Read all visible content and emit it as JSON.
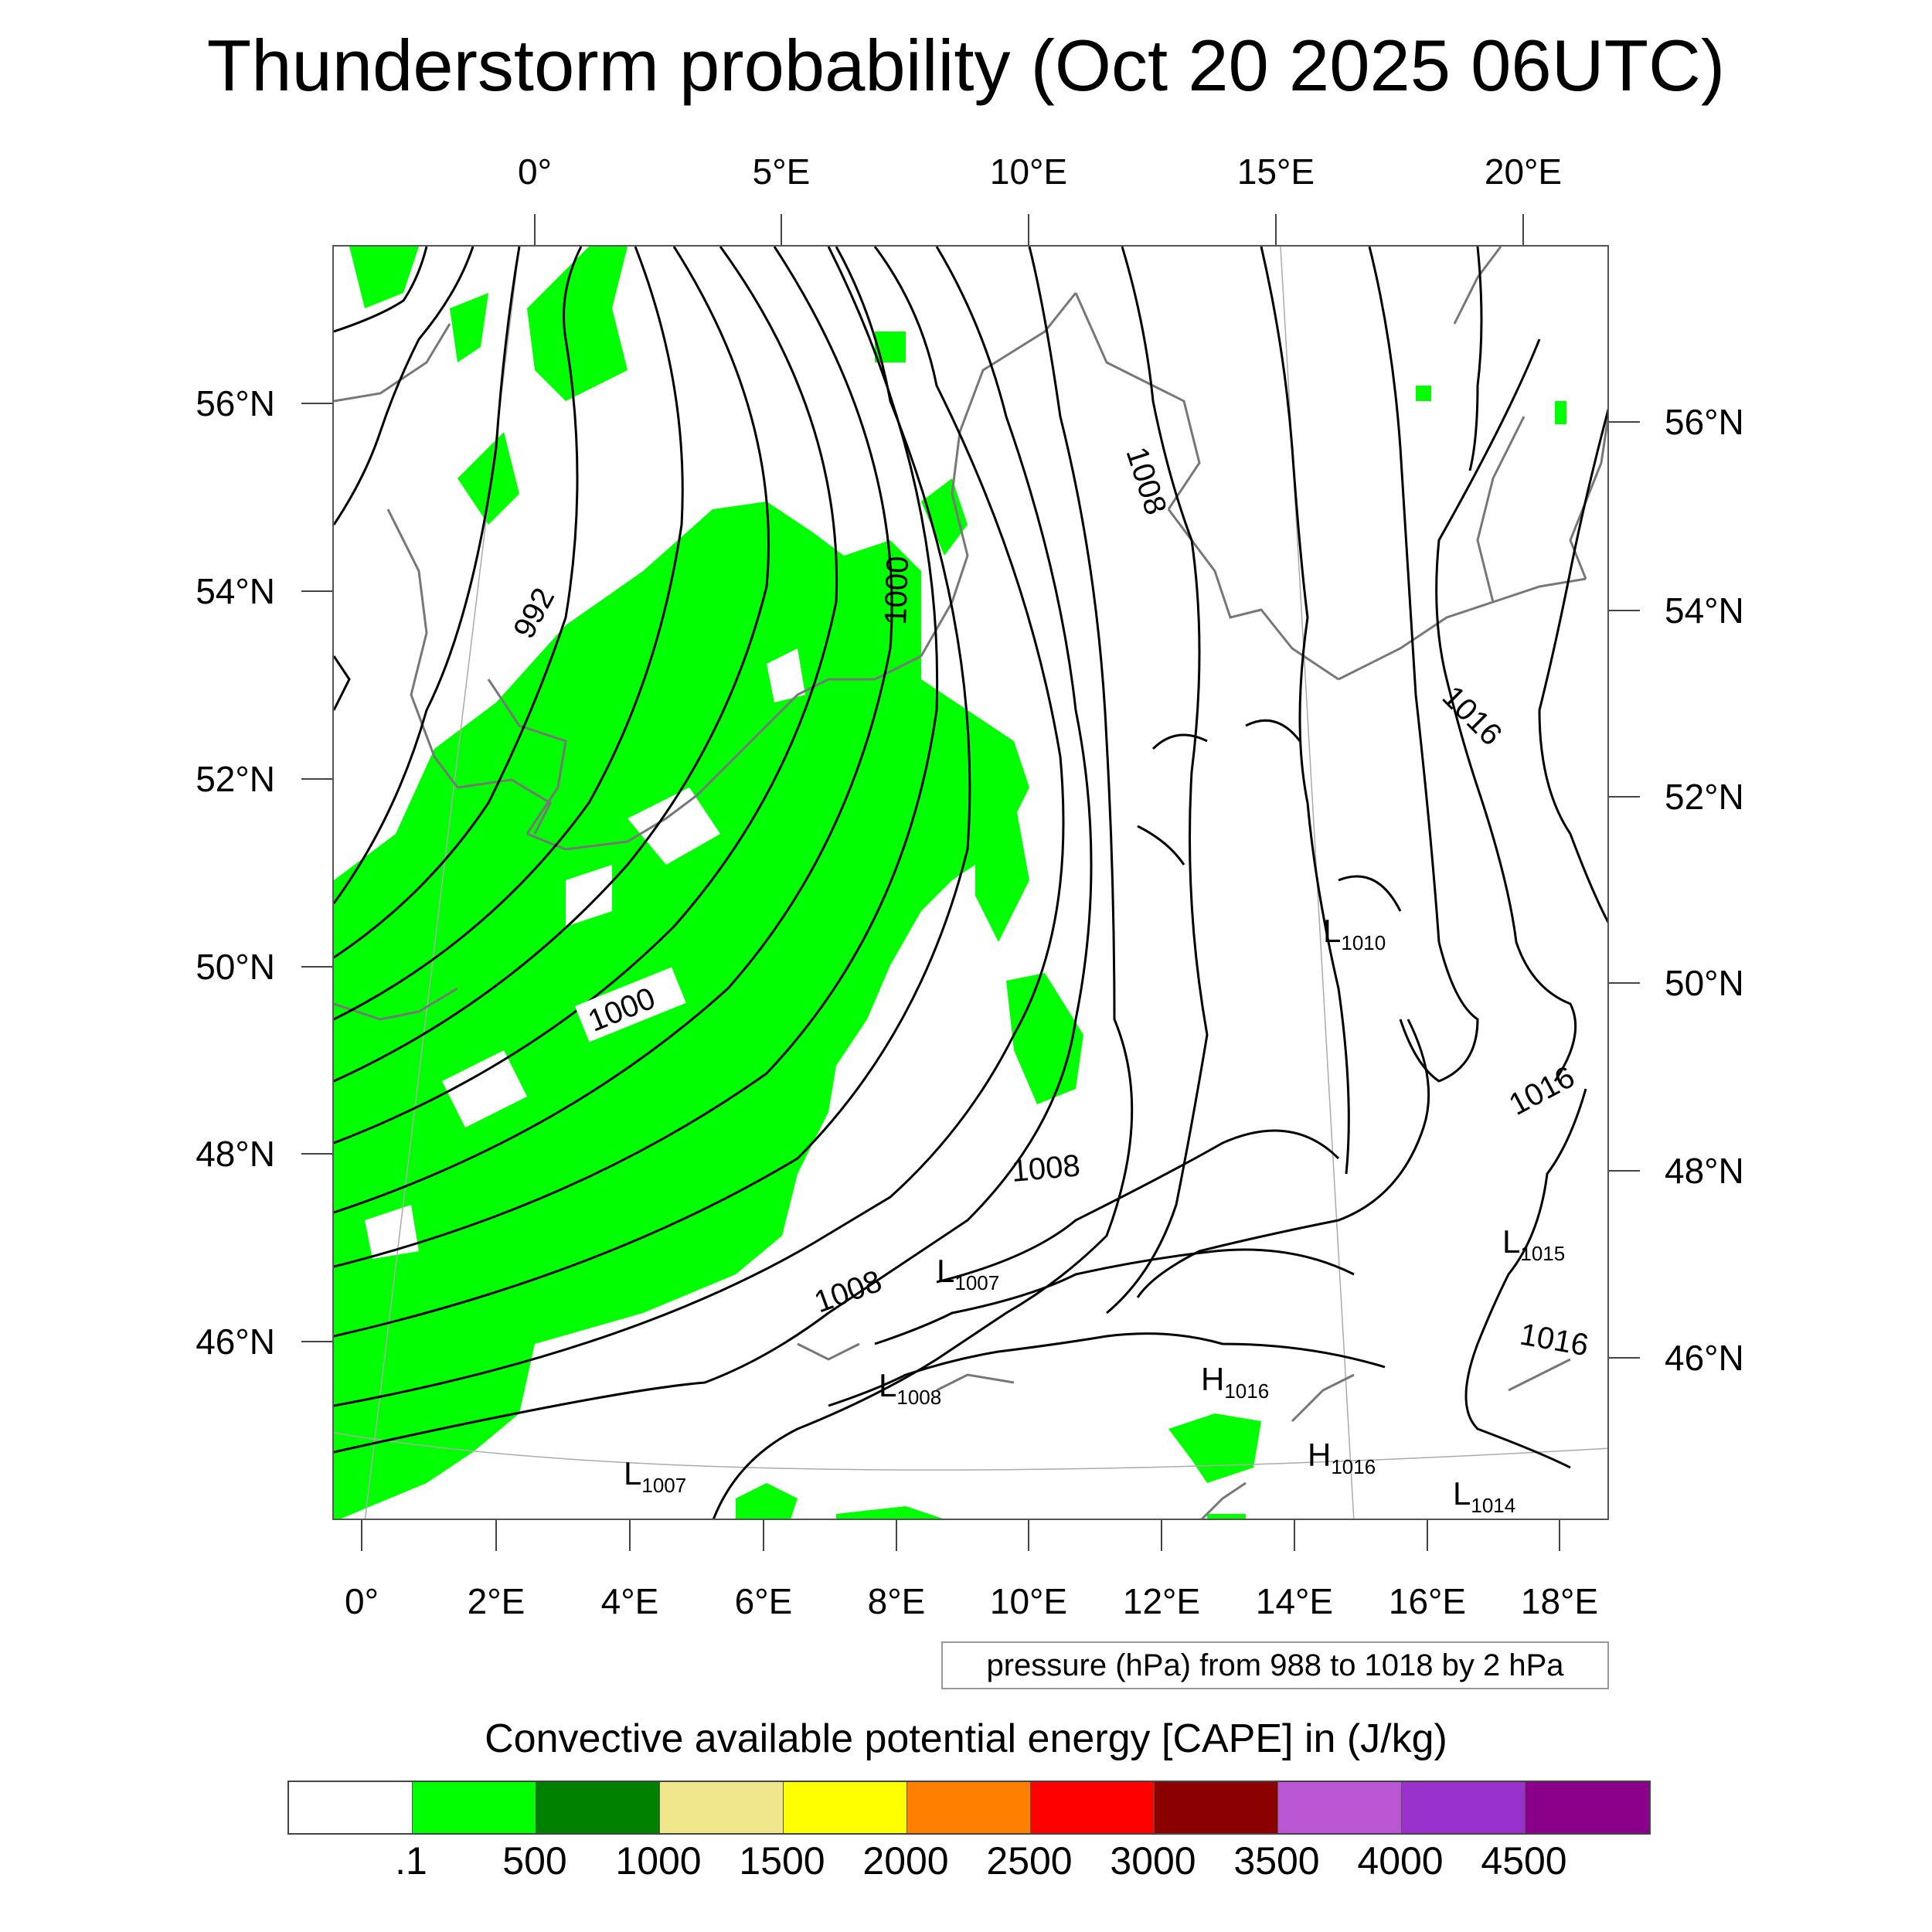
{
  "title": "Thunderstorm probability (Oct 20 2025 06UTC)",
  "top_lon_labels": [
    "0°",
    "5°E",
    "10°E",
    "15°E",
    "20°E"
  ],
  "bottom_lon_labels": [
    "0°",
    "2°E",
    "4°E",
    "6°E",
    "8°E",
    "10°E",
    "12°E",
    "14°E",
    "16°E",
    "18°E"
  ],
  "left_lat_labels": [
    "56°N",
    "54°N",
    "52°N",
    "50°N",
    "48°N",
    "46°N"
  ],
  "right_lat_labels": [
    "56°N",
    "54°N",
    "52°N",
    "50°N",
    "48°N",
    "46°N"
  ],
  "pressure_info": "pressure (hPa) from 988 to 1018 by 2 hPa",
  "colorbar": {
    "title": "Convective available potential energy [CAPE] in (J/kg)",
    "colors": [
      "#ffffff",
      "#00ff00",
      "#008000",
      "#f0e68c",
      "#ffff00",
      "#ff8000",
      "#ff0000",
      "#8b0000",
      "#ba55d3",
      "#9932cc",
      "#8b008b"
    ],
    "labels": [
      ".1",
      "500",
      "1000",
      "1500",
      "2000",
      "2500",
      "3000",
      "3500",
      "4000",
      "4500"
    ]
  },
  "contour_labels": [
    "992",
    "1000",
    "1000",
    "1008",
    "1016",
    "1016",
    "1008",
    "1008",
    "1016"
  ],
  "pressure_centers": [
    {
      "type": "L",
      "value": "1010"
    },
    {
      "type": "L",
      "value": "1007"
    },
    {
      "type": "L",
      "value": "1008"
    },
    {
      "type": "L",
      "value": "1007"
    },
    {
      "type": "H",
      "value": "1016"
    },
    {
      "type": "H",
      "value": "1016"
    },
    {
      "type": "L",
      "value": "1015"
    },
    {
      "type": "L",
      "value": "1014"
    }
  ]
}
